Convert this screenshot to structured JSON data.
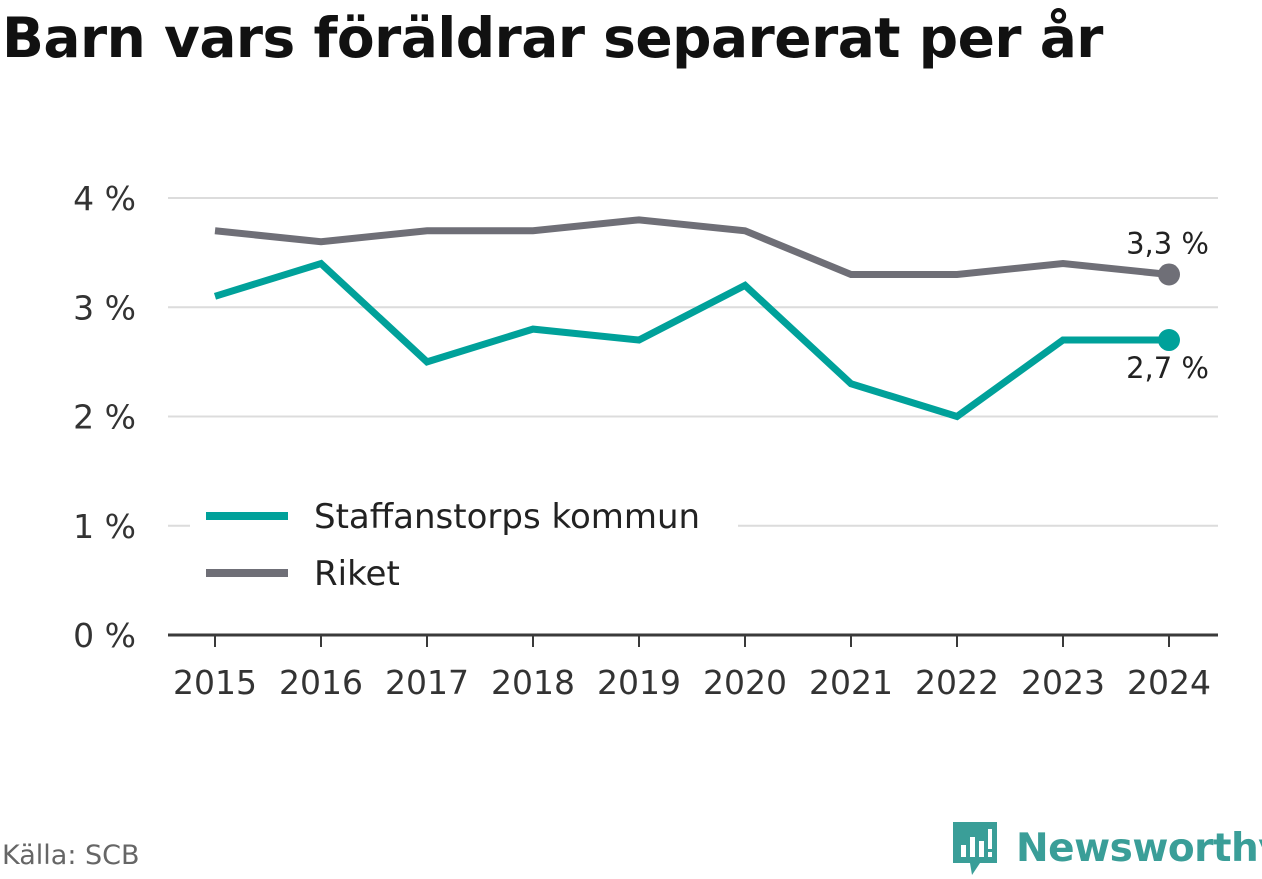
{
  "title": "Barn vars föräldrar separerat per år",
  "source": "Källa: SCB",
  "brand": {
    "name": "Newsworthy",
    "icon": "newsworthy-logo-icon",
    "color": "#3a9e98"
  },
  "chart_data": {
    "type": "line",
    "x": [
      "2015",
      "2016",
      "2017",
      "2018",
      "2019",
      "2020",
      "2021",
      "2022",
      "2023",
      "2024"
    ],
    "series": [
      {
        "name": "Staffanstorps kommun",
        "color": "#00a19a",
        "values": [
          3.1,
          3.4,
          2.5,
          2.8,
          2.7,
          3.2,
          2.3,
          2.0,
          2.7,
          2.7
        ],
        "end_label": "2,7 %"
      },
      {
        "name": "Riket",
        "color": "#6f6f77",
        "values": [
          3.7,
          3.6,
          3.7,
          3.7,
          3.8,
          3.7,
          3.3,
          3.3,
          3.4,
          3.3
        ],
        "end_label": "3,3 %"
      }
    ],
    "yticks": [
      0,
      1,
      2,
      3,
      4
    ],
    "ytick_labels": [
      "0 %",
      "1 %",
      "2 %",
      "3 %",
      "4 %"
    ],
    "ylim": [
      0,
      4
    ],
    "grid": true,
    "legend": "bottom-left"
  }
}
